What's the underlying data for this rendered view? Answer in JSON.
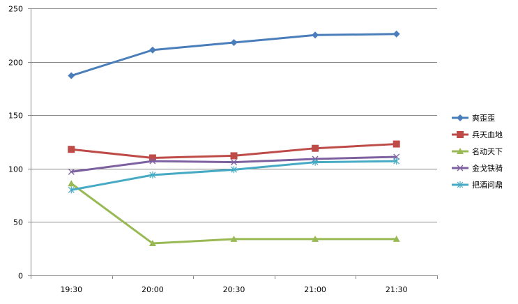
{
  "chart_data": {
    "type": "line",
    "title": "",
    "xlabel": "",
    "ylabel": "",
    "categories": [
      "19:30",
      "20:00",
      "20:30",
      "21:00",
      "21:30"
    ],
    "ylim": [
      0,
      250
    ],
    "yticks": [
      0,
      50,
      100,
      150,
      200,
      250
    ],
    "grid": true,
    "legend_position": "right",
    "series": [
      {
        "name": "爽歪歪",
        "values": [
          187,
          211,
          218,
          225,
          226
        ],
        "color": "#4A7EBB",
        "marker": "diamond"
      },
      {
        "name": "兵天血地",
        "values": [
          118,
          110,
          112,
          119,
          123
        ],
        "color": "#BE4B48",
        "marker": "square"
      },
      {
        "name": "名动天下",
        "values": [
          86,
          30,
          34,
          34,
          34
        ],
        "color": "#98B954",
        "marker": "triangle"
      },
      {
        "name": "金戈铁骑",
        "values": [
          97,
          107,
          106,
          109,
          111
        ],
        "color": "#7D60A0",
        "marker": "x"
      },
      {
        "name": "把酒问鼎",
        "values": [
          80,
          94,
          99,
          106,
          107
        ],
        "color": "#46AAC5",
        "marker": "star"
      }
    ]
  }
}
